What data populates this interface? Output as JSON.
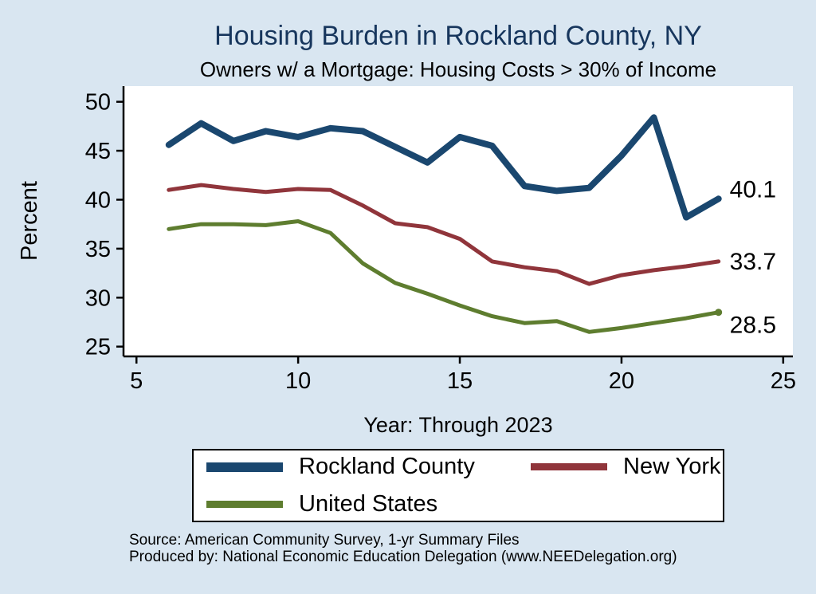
{
  "title": "Housing Burden in Rockland County, NY",
  "subtitle": "Owners w/ a Mortgage: Housing Costs > 30% of Income",
  "ylabel": "Percent",
  "xlabel": "Year: Through 2023",
  "source_line1": "Source: American Community Survey, 1-yr Summary Files",
  "source_line2": "Produced by: National Economic Education Delegation (www.NEEDelegation.org)",
  "colors": {
    "background": "#d9e6f1",
    "plot_bg": "#ffffff",
    "axis": "#000000",
    "title": "#17365d",
    "rockland": "#1a476f",
    "new_york": "#90353b",
    "united_states": "#5e7d2f"
  },
  "chart_data": {
    "type": "line",
    "title": "Housing Burden in Rockland County, NY",
    "subtitle": "Owners w/ a Mortgage: Housing Costs > 30% of Income",
    "xlabel": "Year: Through 2023",
    "ylabel": "Percent",
    "xlim": [
      4.6,
      25.3
    ],
    "ylim": [
      24.0,
      51.6
    ],
    "xticks": [
      5,
      10,
      15,
      20,
      25
    ],
    "yticks": [
      25,
      30,
      35,
      40,
      45,
      50
    ],
    "grid": false,
    "legend_position": "bottom",
    "x": [
      6,
      7,
      8,
      9,
      10,
      11,
      12,
      13,
      14,
      15,
      16,
      17,
      18,
      19,
      20,
      21,
      22,
      23
    ],
    "series": [
      {
        "name": "Rockland County",
        "color": "#1a476f",
        "width": 8,
        "end_label": "40.1",
        "end_label_dy": -12,
        "end_marker": false,
        "values": [
          45.6,
          47.8,
          46.0,
          47.0,
          46.4,
          47.3,
          47.0,
          45.4,
          43.8,
          46.4,
          45.5,
          41.4,
          40.9,
          41.2,
          44.5,
          48.4,
          38.2,
          40.1
        ]
      },
      {
        "name": "New York",
        "color": "#90353b",
        "width": 5,
        "end_label": "33.7",
        "end_label_dy": 0,
        "end_marker": false,
        "values": [
          41.0,
          41.5,
          41.1,
          40.8,
          41.1,
          41.0,
          39.4,
          37.6,
          37.2,
          36.0,
          33.7,
          33.1,
          32.7,
          31.4,
          32.3,
          32.8,
          33.2,
          33.7
        ]
      },
      {
        "name": "United States",
        "color": "#5e7d2f",
        "width": 5,
        "end_label": "28.5",
        "end_label_dy": 16,
        "end_marker": true,
        "values": [
          37.0,
          37.5,
          37.5,
          37.4,
          37.8,
          36.6,
          33.5,
          31.5,
          30.4,
          29.2,
          28.1,
          27.4,
          27.6,
          26.5,
          26.9,
          27.4,
          27.9,
          28.5
        ]
      }
    ]
  },
  "legend": [
    {
      "label": "Rockland County",
      "color": "#1a476f",
      "thickness": 12
    },
    {
      "label": "New York",
      "color": "#90353b",
      "thickness": 9
    },
    {
      "label": "United States",
      "color": "#5e7d2f",
      "thickness": 9
    }
  ]
}
